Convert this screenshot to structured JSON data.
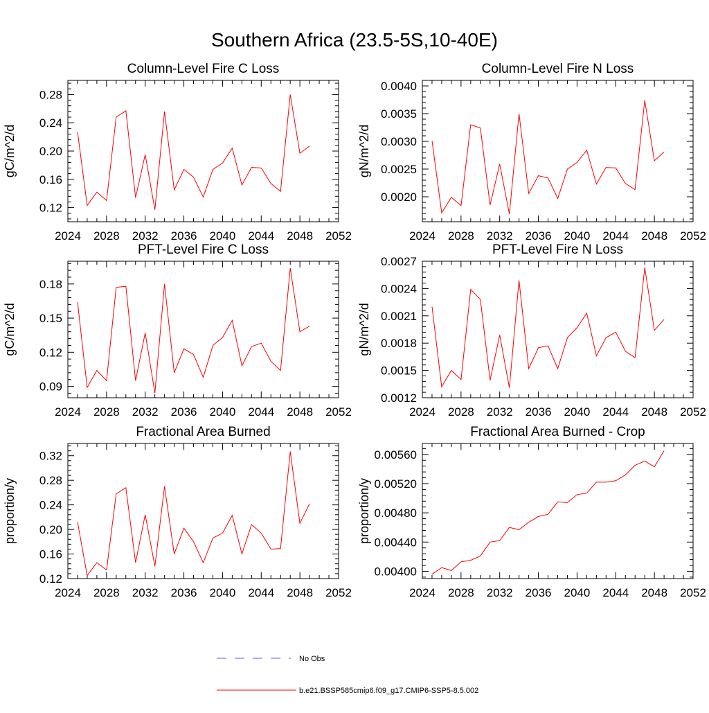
{
  "title": "Southern Africa (23.5-5S,10-40E)",
  "colors": {
    "series": "#ff0000",
    "obs": "#5b5bd6",
    "axis": "#000000"
  },
  "x_ticks": [
    "2024",
    "2028",
    "2032",
    "2036",
    "2040",
    "2044",
    "2048",
    "2052"
  ],
  "legend": {
    "obs_label": "No Obs",
    "model_label": "b.e21.BSSP585cmip6.f09_g17.CMIP6-SSP5-8.5.002"
  },
  "chart_data": [
    {
      "type": "line",
      "title": "Column-Level Fire C Loss",
      "ylabel": "gC/m^2/d",
      "xlim": [
        2024,
        2052
      ],
      "ylim": [
        0.1,
        0.3
      ],
      "y_ticks": [
        "0.12",
        "0.16",
        "0.20",
        "0.24",
        "0.28"
      ],
      "y_tick_values": [
        0.12,
        0.16,
        0.2,
        0.24,
        0.28
      ],
      "x": [
        2025,
        2026,
        2027,
        2028,
        2029,
        2030,
        2031,
        2032,
        2033,
        2034,
        2035,
        2036,
        2037,
        2038,
        2039,
        2040,
        2041,
        2042,
        2043,
        2044,
        2045,
        2046,
        2047,
        2048,
        2049
      ],
      "values": [
        0.227,
        0.123,
        0.142,
        0.13,
        0.248,
        0.257,
        0.134,
        0.195,
        0.117,
        0.256,
        0.145,
        0.174,
        0.163,
        0.135,
        0.174,
        0.183,
        0.204,
        0.152,
        0.177,
        0.176,
        0.154,
        0.143,
        0.28,
        0.197,
        0.207
      ]
    },
    {
      "type": "line",
      "title": "Column-Level Fire N Loss",
      "ylabel": "gN/m^2/d",
      "xlim": [
        2024,
        2052
      ],
      "ylim": [
        0.00155,
        0.0041
      ],
      "y_ticks": [
        "0.0020",
        "0.0025",
        "0.0030",
        "0.0035",
        "0.0040"
      ],
      "y_tick_values": [
        0.002,
        0.0025,
        0.003,
        0.0035,
        0.004
      ],
      "x": [
        2025,
        2026,
        2027,
        2028,
        2029,
        2030,
        2031,
        2032,
        2033,
        2034,
        2035,
        2036,
        2037,
        2038,
        2039,
        2040,
        2041,
        2042,
        2043,
        2044,
        2045,
        2046,
        2047,
        2048,
        2049
      ],
      "values": [
        0.00301,
        0.00171,
        0.00199,
        0.00184,
        0.0033,
        0.00324,
        0.00185,
        0.00259,
        0.00169,
        0.0035,
        0.00206,
        0.00238,
        0.00234,
        0.00197,
        0.0025,
        0.00262,
        0.00284,
        0.00223,
        0.00253,
        0.00252,
        0.00224,
        0.00213,
        0.00374,
        0.00265,
        0.00281
      ]
    },
    {
      "type": "line",
      "title": "PFT-Level Fire C Loss",
      "ylabel": "gC/m^2/d",
      "xlim": [
        2024,
        2052
      ],
      "ylim": [
        0.08,
        0.2
      ],
      "y_ticks": [
        "0.09",
        "0.12",
        "0.15",
        "0.18"
      ],
      "y_tick_values": [
        0.09,
        0.12,
        0.15,
        0.18
      ],
      "x": [
        2025,
        2026,
        2027,
        2028,
        2029,
        2030,
        2031,
        2032,
        2033,
        2034,
        2035,
        2036,
        2037,
        2038,
        2039,
        2040,
        2041,
        2042,
        2043,
        2044,
        2045,
        2046,
        2047,
        2048,
        2049
      ],
      "values": [
        0.164,
        0.089,
        0.104,
        0.095,
        0.177,
        0.178,
        0.095,
        0.137,
        0.084,
        0.18,
        0.102,
        0.123,
        0.118,
        0.098,
        0.126,
        0.133,
        0.148,
        0.108,
        0.125,
        0.128,
        0.112,
        0.104,
        0.194,
        0.138,
        0.143
      ]
    },
    {
      "type": "line",
      "title": "PFT-Level Fire N Loss",
      "ylabel": "gN/m^2/d",
      "xlim": [
        2024,
        2052
      ],
      "ylim": [
        0.0012,
        0.0027
      ],
      "y_ticks": [
        "0.0012",
        "0.0015",
        "0.0018",
        "0.0021",
        "0.0024",
        "0.0027"
      ],
      "y_tick_values": [
        0.0012,
        0.0015,
        0.0018,
        0.0021,
        0.0024,
        0.0027
      ],
      "x": [
        2025,
        2026,
        2027,
        2028,
        2029,
        2030,
        2031,
        2032,
        2033,
        2034,
        2035,
        2036,
        2037,
        2038,
        2039,
        2040,
        2041,
        2042,
        2043,
        2044,
        2045,
        2046,
        2047,
        2048,
        2049
      ],
      "values": [
        0.0022,
        0.00132,
        0.0015,
        0.0014,
        0.00239,
        0.00228,
        0.00139,
        0.00189,
        0.00131,
        0.00249,
        0.00152,
        0.00175,
        0.00177,
        0.00152,
        0.00186,
        0.00197,
        0.00213,
        0.00166,
        0.00186,
        0.00192,
        0.00171,
        0.00164,
        0.00263,
        0.00194,
        0.00206
      ]
    },
    {
      "type": "line",
      "title": "Fractional Area Burned",
      "ylabel": "proportion/y",
      "xlim": [
        2024,
        2052
      ],
      "ylim": [
        0.12,
        0.34
      ],
      "y_ticks": [
        "0.12",
        "0.16",
        "0.20",
        "0.24",
        "0.28",
        "0.32"
      ],
      "y_tick_values": [
        0.12,
        0.16,
        0.2,
        0.24,
        0.28,
        0.32
      ],
      "x": [
        2025,
        2026,
        2027,
        2028,
        2029,
        2030,
        2031,
        2032,
        2033,
        2034,
        2035,
        2036,
        2037,
        2038,
        2039,
        2040,
        2041,
        2042,
        2043,
        2044,
        2045,
        2046,
        2047,
        2048,
        2049
      ],
      "values": [
        0.212,
        0.125,
        0.146,
        0.134,
        0.258,
        0.268,
        0.146,
        0.224,
        0.14,
        0.27,
        0.16,
        0.202,
        0.18,
        0.146,
        0.186,
        0.194,
        0.223,
        0.16,
        0.208,
        0.194,
        0.168,
        0.169,
        0.327,
        0.21,
        0.242
      ]
    },
    {
      "type": "line",
      "title": "Fractional Area Burned - Crop",
      "ylabel": "proportion/y",
      "xlim": [
        2024,
        2052
      ],
      "ylim": [
        0.0039,
        0.00575
      ],
      "y_ticks": [
        "0.00400",
        "0.00440",
        "0.00480",
        "0.00520",
        "0.00560"
      ],
      "y_tick_values": [
        0.004,
        0.0044,
        0.0048,
        0.0052,
        0.0056
      ],
      "x": [
        2025,
        2026,
        2027,
        2028,
        2029,
        2030,
        2031,
        2032,
        2033,
        2034,
        2035,
        2036,
        2037,
        2038,
        2039,
        2040,
        2041,
        2042,
        2043,
        2044,
        2045,
        2046,
        2047,
        2048,
        2049
      ],
      "values": [
        0.00396,
        0.00405,
        0.00401,
        0.00413,
        0.00415,
        0.00421,
        0.0044,
        0.00442,
        0.0046,
        0.00457,
        0.00467,
        0.00475,
        0.00478,
        0.00495,
        0.00494,
        0.00505,
        0.00507,
        0.00522,
        0.00522,
        0.00524,
        0.00532,
        0.00545,
        0.00551,
        0.00543,
        0.00565
      ]
    }
  ]
}
